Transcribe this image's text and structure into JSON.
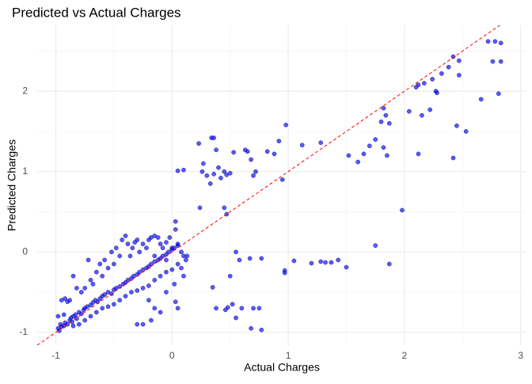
{
  "chart_data": {
    "type": "scatter",
    "title": "Predicted vs Actual Charges",
    "x_label": "Actual Charges",
    "y_label": "Predicted Charges",
    "color": "#0000ff",
    "edge_color": "#1a1a80",
    "x": [
      2.78,
      2.83,
      2.83,
      2.76,
      2.72,
      2.81,
      2.66,
      2.53,
      2.47,
      2.47,
      2.45,
      2.42,
      2.42,
      2.38,
      2.32,
      2.27,
      2.28,
      2.24,
      2.22,
      2.17,
      2.15,
      2.12,
      2.1,
      2.12,
      2.04,
      1.98,
      1.84,
      1.82,
      1.8,
      1.87,
      1.82,
      1.85,
      1.75,
      1.7,
      1.65,
      1.6,
      1.52,
      1.75,
      1.87,
      1.5,
      1.43,
      1.37,
      1.32,
      1.28,
      1.2,
      1.05,
      0.97,
      0.97,
      1.28,
      1.12,
      0.98,
      0.92,
      0.88,
      0.82,
      0.95,
      0.72,
      0.7,
      0.65,
      0.63,
      0.68,
      0.53,
      0.5,
      0.47,
      0.45,
      0.42,
      0.4,
      0.38,
      0.36,
      0.34,
      0.36,
      0.33,
      0.3,
      0.27,
      0.26,
      0.23,
      0.24,
      0.1,
      0.05,
      0.47,
      0.45,
      0.55,
      0.58,
      0.67,
      0.77,
      0.5,
      0.35,
      0.38,
      0.46,
      0.48,
      0.52,
      0.6,
      0.7,
      0.75,
      0.68,
      0.77,
      0.55,
      -0.97,
      -0.98,
      -0.95,
      -0.96,
      -0.93,
      -0.92,
      -0.9,
      -0.88,
      -0.87,
      -0.85,
      -0.86,
      -0.83,
      -0.82,
      -0.8,
      -0.78,
      -0.76,
      -0.75,
      -0.73,
      -0.7,
      -0.68,
      -0.66,
      -0.64,
      -0.62,
      -0.6,
      -0.58,
      -0.55,
      -0.52,
      -0.5,
      -0.48,
      -0.45,
      -0.42,
      -0.4,
      -0.38,
      -0.35,
      -0.33,
      -0.3,
      -0.28,
      -0.25,
      -0.22,
      -0.2,
      -0.18,
      -0.15,
      -0.12,
      -0.1,
      -0.08,
      -0.05,
      -0.03,
      0.0,
      0.02,
      0.05,
      -0.95,
      -0.92,
      -0.9,
      -0.88,
      -0.85,
      -0.82,
      -0.78,
      -0.75,
      -0.72,
      -0.7,
      -0.68,
      -0.65,
      -0.62,
      -0.6,
      -0.58,
      -0.55,
      -0.52,
      -0.5,
      -0.48,
      -0.45,
      -0.43,
      -0.4,
      -0.38,
      -0.36,
      -0.34,
      -0.32,
      -0.3,
      -0.28,
      -0.25,
      -0.22,
      -0.2,
      -0.18,
      -0.15,
      -0.12,
      -0.1,
      -0.08,
      -0.05,
      -0.02,
      0.0,
      0.03,
      0.03,
      0.05,
      0.08,
      0.1,
      0.12,
      0.13,
      -0.98,
      -0.93,
      -0.85,
      -0.8,
      -0.75,
      -0.7,
      -0.65,
      -0.6,
      -0.55,
      -0.5,
      -0.45,
      -0.4,
      -0.35,
      -0.3,
      -0.25,
      -0.2,
      -0.15,
      -0.1,
      -0.05,
      0.0,
      0.05,
      0.08,
      0.1,
      -0.3,
      -0.25,
      -0.18,
      -0.15,
      -0.1,
      0.03,
      0.05,
      -0.2,
      -0.05,
      0.02,
      -0.15,
      -0.05
    ],
    "values": [
      2.62,
      2.6,
      2.37,
      2.37,
      2.62,
      1.97,
      1.9,
      1.5,
      2.38,
      2.2,
      1.57,
      2.43,
      1.17,
      2.3,
      2.22,
      2.0,
      1.98,
      2.15,
      1.77,
      2.1,
      1.7,
      2.08,
      2.05,
      1.22,
      1.75,
      0.52,
      1.7,
      1.79,
      1.62,
      1.6,
      1.3,
      1.2,
      1.4,
      1.32,
      1.22,
      1.12,
      1.2,
      0.08,
      -0.15,
      -0.19,
      -0.1,
      -0.13,
      -0.13,
      -0.12,
      -0.14,
      -0.11,
      -0.23,
      -0.26,
      1.36,
      1.33,
      1.58,
      1.38,
      1.22,
      1.25,
      0.9,
      1.0,
      0.95,
      1.25,
      1.27,
      1.15,
      1.24,
      0.98,
      0.96,
      1.0,
      0.92,
      1.05,
      1.27,
      1.42,
      1.42,
      0.97,
      0.85,
      0.95,
      1.1,
      1.0,
      1.35,
      0.55,
      1.02,
      1.01,
      0.47,
      0.55,
      0.0,
      -0.1,
      -0.08,
      -0.08,
      -0.3,
      -0.44,
      -0.7,
      -0.72,
      -0.69,
      -0.65,
      -0.7,
      -0.7,
      -0.7,
      -0.95,
      -0.97,
      -0.82,
      -0.98,
      -0.95,
      -0.93,
      -0.9,
      -0.92,
      -0.88,
      -0.9,
      -0.85,
      -0.82,
      -0.8,
      -0.87,
      -0.78,
      -0.83,
      -0.75,
      -0.77,
      -0.72,
      -0.7,
      -0.68,
      -0.66,
      -0.63,
      -0.6,
      -0.62,
      -0.58,
      -0.55,
      -0.53,
      -0.5,
      -0.52,
      -0.47,
      -0.45,
      -0.43,
      -0.4,
      -0.38,
      -0.35,
      -0.33,
      -0.3,
      -0.28,
      -0.25,
      -0.22,
      -0.2,
      -0.18,
      -0.15,
      -0.12,
      -0.1,
      -0.08,
      -0.05,
      -0.03,
      0.0,
      0.03,
      0.05,
      0.08,
      -0.6,
      -0.58,
      -0.62,
      -0.6,
      -0.3,
      -0.45,
      -0.5,
      -0.45,
      -0.1,
      -0.35,
      -0.4,
      -0.25,
      -0.15,
      -0.3,
      -0.1,
      -0.2,
      0.0,
      -0.15,
      0.05,
      -0.05,
      0.15,
      0.2,
      0.1,
      -0.05,
      0.05,
      0.12,
      0.15,
      0.0,
      0.1,
      0.05,
      0.15,
      0.18,
      0.2,
      0.18,
      0.1,
      0.05,
      0.12,
      0.18,
      0.05,
      0.38,
      0.28,
      0.1,
      0.0,
      -0.05,
      -0.1,
      -0.05,
      -0.8,
      -0.78,
      -0.92,
      -0.9,
      -0.85,
      -0.8,
      -0.75,
      -0.7,
      -0.68,
      -0.65,
      -0.6,
      -0.55,
      -0.5,
      -0.48,
      -0.45,
      -0.42,
      -0.35,
      -0.3,
      -0.25,
      -0.22,
      -0.15,
      -0.2,
      -0.3,
      -0.9,
      -0.9,
      -0.85,
      -0.7,
      -0.75,
      -0.62,
      -0.7,
      -0.6,
      -0.5,
      -0.4,
      -0.05,
      -0.1
    ],
    "xlim": [
      -1.16,
      3.05
    ],
    "ylim": [
      -1.16,
      2.82
    ],
    "xticks": [
      -1,
      0,
      1,
      2,
      3
    ],
    "yticks": [
      -1,
      0,
      1,
      2
    ],
    "xminor": [
      -0.5,
      0.5,
      1.5,
      2.5
    ],
    "yminor": [
      -0.5,
      0.5,
      1.5,
      2.5
    ],
    "grid": true,
    "reference_line": {
      "slope": 1,
      "intercept": 0,
      "color": "#ff0000",
      "dashed": true
    }
  }
}
